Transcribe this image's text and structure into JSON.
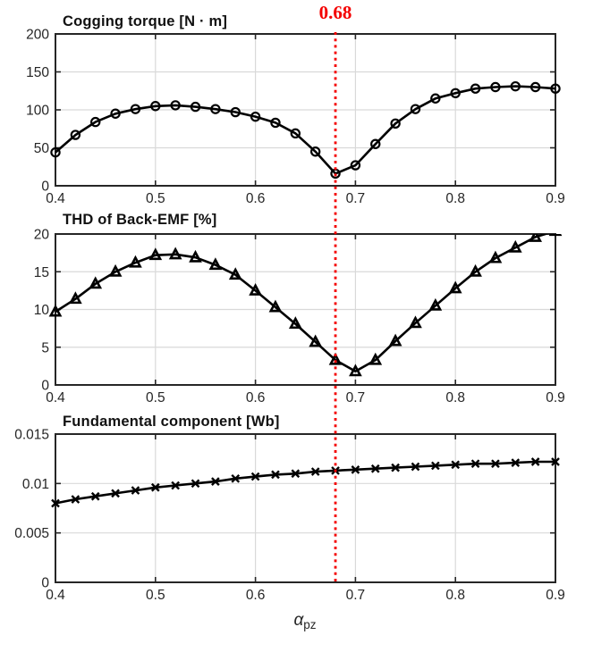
{
  "figure": {
    "background": "#ffffff",
    "axis_color": "#262626",
    "grid_color": "#d9d9d9",
    "series_color": "#000000",
    "annotation": {
      "text": "0.68",
      "x": 0.68,
      "color": "#f40000",
      "style": "dotted-vertical-line"
    },
    "xlabel": {
      "base": "α",
      "subscript": "pz"
    },
    "xlim": [
      0.4,
      0.9
    ],
    "xticks": [
      0.4,
      0.5,
      0.6,
      0.7,
      0.8,
      0.9
    ]
  },
  "chart_data": [
    {
      "id": "cogging-torque",
      "type": "line",
      "title": "Cogging torque [N · m]",
      "marker": "circle",
      "grid": true,
      "xlim": [
        0.4,
        0.9
      ],
      "ylim": [
        0,
        200
      ],
      "xticks": [
        0.4,
        0.5,
        0.6,
        0.7,
        0.8,
        0.9
      ],
      "yticks": [
        0,
        50,
        100,
        150,
        200
      ],
      "x": [
        0.4,
        0.42,
        0.44,
        0.46,
        0.48,
        0.5,
        0.52,
        0.54,
        0.56,
        0.58,
        0.6,
        0.62,
        0.64,
        0.66,
        0.68,
        0.7,
        0.72,
        0.74,
        0.76,
        0.78,
        0.8,
        0.82,
        0.84,
        0.86,
        0.88,
        0.9
      ],
      "y": [
        44,
        67,
        84,
        95,
        101,
        105,
        106,
        104,
        101,
        97,
        91,
        83,
        69,
        45,
        16,
        27,
        55,
        82,
        101,
        115,
        122,
        128,
        130,
        131,
        130,
        128
      ]
    },
    {
      "id": "thd-back-emf",
      "type": "line",
      "title": "THD of Back-EMF [%]",
      "marker": "triangle-up",
      "grid": true,
      "xlim": [
        0.4,
        0.9
      ],
      "ylim": [
        0,
        20
      ],
      "xticks": [
        0.4,
        0.5,
        0.6,
        0.7,
        0.8,
        0.9
      ],
      "yticks": [
        0,
        5,
        10,
        15,
        20
      ],
      "x": [
        0.4,
        0.42,
        0.44,
        0.46,
        0.48,
        0.5,
        0.52,
        0.54,
        0.56,
        0.58,
        0.6,
        0.62,
        0.64,
        0.66,
        0.68,
        0.7,
        0.72,
        0.74,
        0.76,
        0.78,
        0.8,
        0.82,
        0.84,
        0.86,
        0.88,
        0.9
      ],
      "y": [
        9.7,
        11.4,
        13.4,
        15.0,
        16.2,
        17.2,
        17.3,
        16.9,
        15.9,
        14.6,
        12.5,
        10.3,
        8.1,
        5.7,
        3.3,
        1.8,
        3.3,
        5.8,
        8.2,
        10.5,
        12.8,
        15.0,
        16.8,
        18.2,
        19.6,
        20.4
      ]
    },
    {
      "id": "fundamental-component",
      "type": "line",
      "title": "Fundamental component [Wb]",
      "marker": "x-cross",
      "grid": true,
      "xlim": [
        0.4,
        0.9
      ],
      "ylim": [
        0,
        0.015
      ],
      "xticks": [
        0.4,
        0.5,
        0.6,
        0.7,
        0.8,
        0.9
      ],
      "yticks": [
        0,
        0.005,
        0.01,
        0.015
      ],
      "x": [
        0.4,
        0.42,
        0.44,
        0.46,
        0.48,
        0.5,
        0.52,
        0.54,
        0.56,
        0.58,
        0.6,
        0.62,
        0.64,
        0.66,
        0.68,
        0.7,
        0.72,
        0.74,
        0.76,
        0.78,
        0.8,
        0.82,
        0.84,
        0.86,
        0.88,
        0.9
      ],
      "y": [
        0.008,
        0.0084,
        0.0087,
        0.009,
        0.0093,
        0.0096,
        0.0098,
        0.01,
        0.0102,
        0.0105,
        0.0107,
        0.0109,
        0.011,
        0.0112,
        0.0113,
        0.0114,
        0.0115,
        0.0116,
        0.0117,
        0.0118,
        0.0119,
        0.012,
        0.012,
        0.0121,
        0.0122,
        0.0122
      ]
    }
  ]
}
